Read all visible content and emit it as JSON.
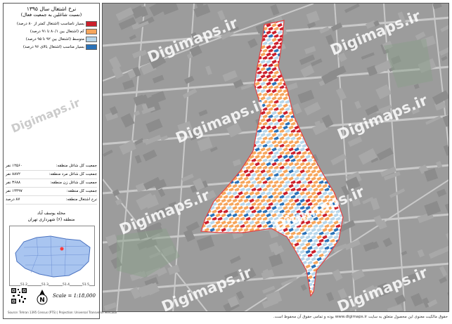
{
  "legend": {
    "title": "نرخ اشتغال سال ۱۳۹۵",
    "subtitle": "(نسبت شاغلین به جمعیت فعال)",
    "items": [
      {
        "label": "بسیار نامناسب (اشتغال کمتر از ۸۰ درصد)",
        "color": "#cc1f2b"
      },
      {
        "label": "کم (اشتغال بین ۸۰/۱ تا ۹۱ درصد)",
        "color": "#f6a55b"
      },
      {
        "label": "متوسط (اشتغال بین ۹۲ تا ۹۵ درصد)",
        "color": "#b7d6ea"
      },
      {
        "label": "بسیار مناسب (اشتغال بالای ۹۶ درصد)",
        "color": "#2a72b8"
      }
    ]
  },
  "stats": [
    {
      "label": "جمعیت کل شاغل منطقه:",
      "value": "۱۲۵۶۰ نفر"
    },
    {
      "label": "جمعیت کل شاغل مرد منطقه:",
      "value": "۸۸۷۲ نفر"
    },
    {
      "label": "جمعیت کل شاغل زن منطقه:",
      "value": "۳۶۸۸ نفر"
    },
    {
      "label": "جمعیت کل منطقه:",
      "value": "۱۴۴۹۷ نفر"
    },
    {
      "label": "نرخ اشتغال منطقه:",
      "value": "۸۷ درصد"
    }
  ],
  "region": {
    "name": "محله یوسف آباد",
    "district": "منطقه (۶) شهرداری تهران"
  },
  "scale": "Scale = 1:18,000",
  "source": "Source: Tehran 1395 Census (PTS) | Projection: Universal Transverse Mercator",
  "footer": "حقوق مالکیت معنوی این محصول متعلق به سایت www.digimaps.ir بوده و تمامی حقوق آن محفوظ است.",
  "watermark": "Digimaps.ir",
  "side_watermark": "Digimaps.ir",
  "north_label": "N",
  "inset_coords": [
    "51.2",
    "51.3",
    "51.4",
    "51.5"
  ],
  "colors": {
    "red": "#cc1f2b",
    "orange": "#f6a55b",
    "lightblue": "#b7d6ea",
    "blue": "#2a72b8",
    "boundary": "#e64040"
  }
}
